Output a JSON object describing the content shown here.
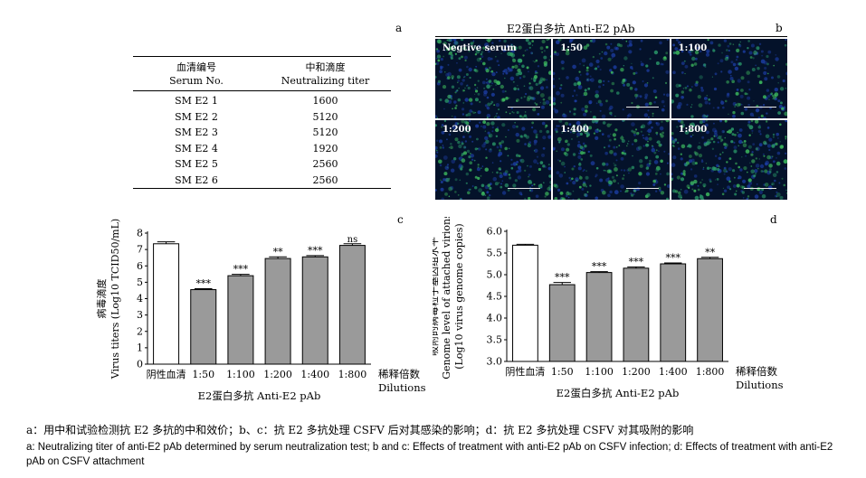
{
  "panel_labels": {
    "a": "a",
    "b": "b",
    "c": "c",
    "d": "d"
  },
  "table": {
    "col1_cn": "血清编号",
    "col1_en": "Serum No.",
    "col2_cn": "中和滴度",
    "col2_en": "Neutralizing titer",
    "rows": [
      {
        "serum": "SM E2 1",
        "titer": "1600"
      },
      {
        "serum": "SM E2 2",
        "titer": "5120"
      },
      {
        "serum": "SM E2 3",
        "titer": "5120"
      },
      {
        "serum": "SM E2 4",
        "titer": "1920"
      },
      {
        "serum": "SM E2 5",
        "titer": "2560"
      },
      {
        "serum": "SM E2 6",
        "titer": "2560"
      }
    ]
  },
  "micrographs": {
    "title": "E2蛋白多抗 Anti-E2 pAb",
    "tiles": [
      "Negtive serum",
      "1:50",
      "1:100",
      "1:200",
      "1:400",
      "1:800"
    ]
  },
  "chart_data": [
    {
      "type": "bar",
      "categories": [
        "阴性血清",
        "1:50",
        "1:100",
        "1:200",
        "1:400",
        "1:800"
      ],
      "values": [
        7.35,
        4.55,
        5.4,
        6.45,
        6.55,
        7.25
      ],
      "errors": [
        0.12,
        0.06,
        0.08,
        0.1,
        0.08,
        0.1
      ],
      "significance": [
        "",
        "***",
        "***",
        "**",
        "***",
        "ns"
      ],
      "ylim": [
        0,
        8
      ],
      "yticks": [
        "0",
        "1",
        "2",
        "3",
        "4",
        "5",
        "6",
        "7",
        "8"
      ],
      "ylabel_cn": "病毒滴度",
      "ylabel_en": "Virus titers (Log10 TCID50/mL)",
      "xlabel": "E2蛋白多抗 Anti-E2 pAb",
      "dilutions_cn": "稀释倍数",
      "dilutions_en": "Dilutions",
      "bar_colors": [
        "#ffffff",
        "#9a9a9a"
      ]
    },
    {
      "type": "bar",
      "categories": [
        "阴性血清",
        "1:50",
        "1:100",
        "1:200",
        "1:400",
        "1:800"
      ],
      "values": [
        5.68,
        4.77,
        5.05,
        5.15,
        5.25,
        5.37
      ],
      "errors": [
        0.02,
        0.05,
        0.02,
        0.03,
        0.02,
        0.03
      ],
      "significance": [
        "",
        "***",
        "***",
        "***",
        "***",
        "**"
      ],
      "ylim": [
        3.0,
        6.0
      ],
      "yticks": [
        "3.0",
        "3.5",
        "4.0",
        "4.5",
        "5.0",
        "5.5",
        "6.0"
      ],
      "ylabel_cn": "吸附的病毒粒子基因组水平",
      "ylabel_en": "Genome level of attached virions",
      "ylabel_en2": "(Log10 virus genome copies)",
      "xlabel": "E2蛋白多抗 Anti-E2 pAb",
      "dilutions_cn": "稀释倍数",
      "dilutions_en": "Dilutions",
      "bar_colors": [
        "#ffffff",
        "#9a9a9a"
      ]
    }
  ],
  "caption": {
    "cn": "a：用中和试验检测抗 E2 多抗的中和效价；b、c：抗 E2 多抗处理 CSFV 后对其感染的影响；d：抗 E2 多抗处理 CSFV 对其吸附的影响",
    "en": "a: Neutralizing titer of anti-E2 pAb determined by serum neutralization test; b and c: Effects of treatment with anti-E2 pAb on CSFV infection; d: Effects of treatment with anti-E2 pAb on CSFV attachment"
  }
}
